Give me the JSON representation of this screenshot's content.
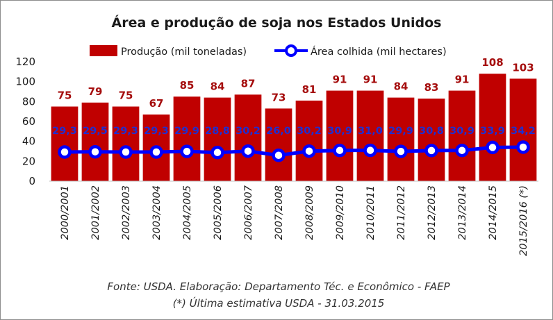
{
  "chart_data": {
    "type": "bar",
    "title": "Área e produção de soja nos Estados Unidos",
    "categories": [
      "2000/2001",
      "2001/2002",
      "2002/2003",
      "2003/2004",
      "2004/2005",
      "2005/2006",
      "2006/2007",
      "2007/2008",
      "2008/2009",
      "2009/2010",
      "2010/2011",
      "2011/2012",
      "2012/2013",
      "2013/2014",
      "2014/2015",
      "2015/2016 (*)"
    ],
    "series": [
      {
        "name": "Produção (mil toneladas)",
        "type": "bar",
        "color": "#c00000",
        "values": [
          75,
          79,
          75,
          67,
          85,
          84,
          87,
          73,
          81,
          91,
          91,
          84,
          83,
          91,
          108,
          103
        ],
        "labels": [
          "75",
          "79",
          "75",
          "67",
          "85",
          "84",
          "87",
          "73",
          "81",
          "91",
          "91",
          "84",
          "83",
          "91",
          "108",
          "103"
        ]
      },
      {
        "name": "Área colhida (mil hectares)",
        "type": "line",
        "color": "#0000ff",
        "values": [
          29.3,
          29.5,
          29.3,
          29.3,
          29.9,
          28.8,
          30.2,
          26.0,
          30.2,
          30.9,
          31.0,
          29.9,
          30.8,
          30.9,
          33.9,
          34.2
        ],
        "labels": [
          "29,3",
          "29,5",
          "29,3",
          "29,3",
          "29,9",
          "28,8",
          "30,2",
          "26,0",
          "30,2",
          "30,9",
          "31,0",
          "29,9",
          "30,8",
          "30,9",
          "33,9",
          "34,2"
        ]
      }
    ],
    "y_ticks": [
      "0",
      "20",
      "40",
      "60",
      "80",
      "100",
      "120"
    ],
    "ylim": [
      0,
      120
    ],
    "xlabel": "",
    "ylabel": "",
    "legend_position": "top",
    "grid": false
  },
  "notes": {
    "source": "Fonte: USDA. Elaboração: Departamento Téc. e Econômico - FAEP",
    "footnote": "(*) Última estimativa USDA - 31.03.2015"
  }
}
